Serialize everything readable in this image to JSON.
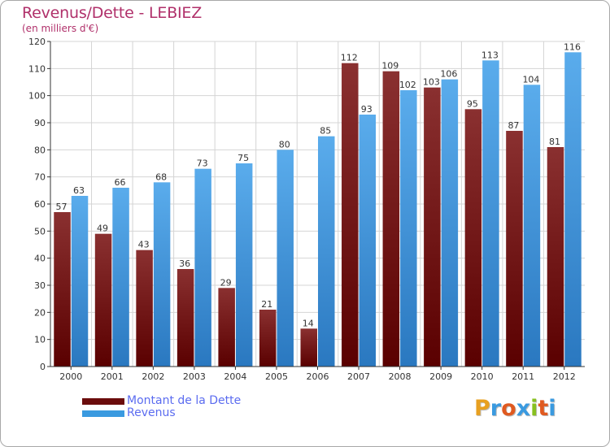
{
  "header": {
    "title": "Revenus/Dette - LEBIEZ",
    "subtitle": "(en milliers d'€)"
  },
  "chart_data": {
    "type": "bar",
    "categories": [
      "2000",
      "2001",
      "2002",
      "2003",
      "2004",
      "2005",
      "2006",
      "2007",
      "2008",
      "2009",
      "2010",
      "2011",
      "2012"
    ],
    "series": [
      {
        "name": "Montant de la Dette",
        "color": "#7a1a1a",
        "values": [
          57,
          49,
          43,
          36,
          29,
          21,
          14,
          112,
          109,
          103,
          95,
          87,
          81
        ]
      },
      {
        "name": "Revenus",
        "color": "#3a9ae0",
        "values": [
          63,
          66,
          68,
          73,
          75,
          80,
          85,
          93,
          102,
          106,
          113,
          104,
          116
        ]
      }
    ],
    "ylim": [
      0,
      120
    ],
    "yticks": [
      0,
      10,
      20,
      30,
      40,
      50,
      60,
      70,
      80,
      90,
      100,
      110,
      120
    ],
    "grid": true,
    "legend": "bottom-left"
  },
  "legend": {
    "items": [
      {
        "label": "Montant de la Dette",
        "color": "#6b0c0c"
      },
      {
        "label": "Revenus",
        "color": "#3a9ae0"
      }
    ]
  },
  "logo": {
    "letters": [
      "P",
      "r",
      "o",
      "x",
      "i",
      "t",
      "i"
    ],
    "colors": [
      "#e8a020",
      "#3a9ae0",
      "#e05a20",
      "#3a9ae0",
      "#88c020",
      "#e05a20",
      "#3a9ae0"
    ]
  }
}
